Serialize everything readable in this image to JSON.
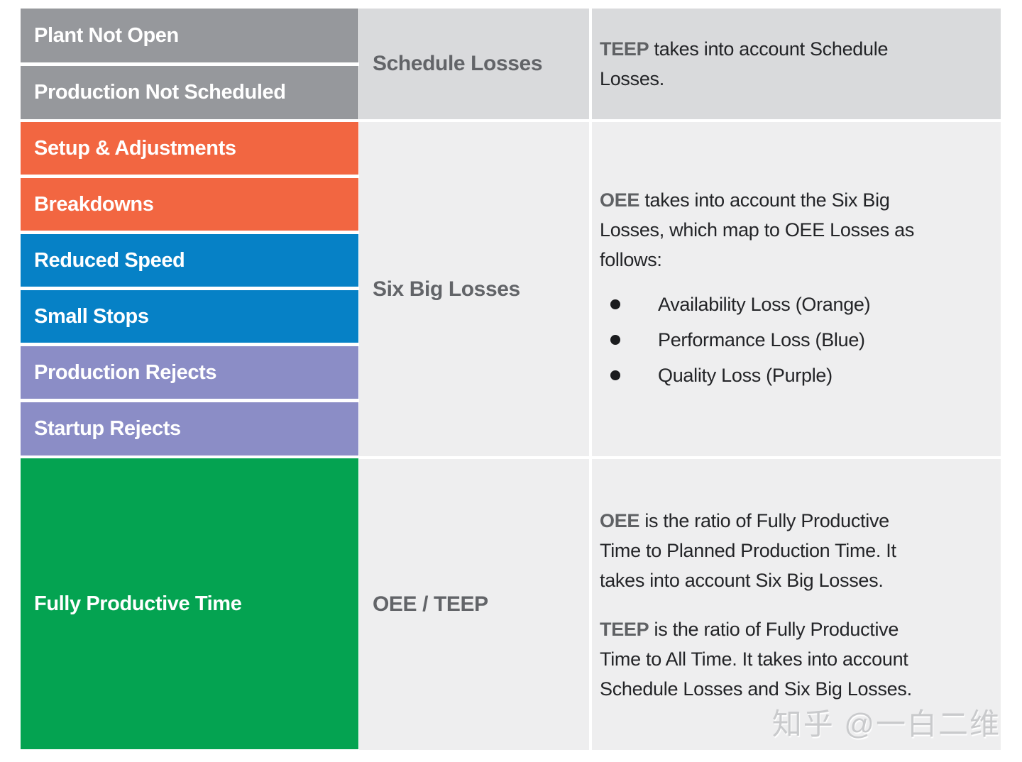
{
  "colors": {
    "schedule_loss_bar": "#96989C",
    "availability_loss_bar": "#F26641",
    "performance_loss_bar": "#0681C6",
    "quality_loss_bar": "#8B8DC6",
    "fully_productive_bar": "#04A351",
    "header_row_bg": "#D9DADC",
    "body_row_bg": "#EEEEEF",
    "category_label_text": "#626468",
    "note_body_text": "#232427",
    "note_keyword_text": "#5F6164",
    "bar_label_text": "#FFFFFF"
  },
  "bars": [
    {
      "label": "Plant Not Open",
      "color": "#96989C"
    },
    {
      "label": "Production Not Scheduled",
      "color": "#96989C"
    },
    {
      "label": "Setup & Adjustments",
      "color": "#F26641"
    },
    {
      "label": "Breakdowns",
      "color": "#F26641"
    },
    {
      "label": "Reduced Speed",
      "color": "#0681C6"
    },
    {
      "label": "Small Stops",
      "color": "#0681C6"
    },
    {
      "label": "Production Rejects",
      "color": "#8B8DC6"
    },
    {
      "label": "Startup Rejects",
      "color": "#8B8DC6"
    },
    {
      "label": "Fully Productive Time",
      "color": "#04A351"
    }
  ],
  "categories": [
    {
      "label": "Schedule Losses"
    },
    {
      "label": "Six Big Losses"
    },
    {
      "label": "OEE / TEEP"
    }
  ],
  "notes": {
    "schedule": {
      "keyword": "TEEP",
      "text": " takes into account Schedule\nLosses."
    },
    "six_big": {
      "keyword": "OEE",
      "text": " takes into account the Six Big\nLosses, which map to OEE Losses as\nfollows:",
      "bullets": [
        "Availability Loss (Orange)",
        "Performance Loss (Blue)",
        "Quality Loss (Purple)"
      ]
    },
    "oee_teep": {
      "p1": {
        "keyword": "OEE",
        "text": " is the ratio of Fully Productive\nTime to Planned Production Time. It\ntakes into account Six Big Losses."
      },
      "p2": {
        "keyword": "TEEP",
        "text": " is the ratio of Fully Productive\nTime to All Time. It takes into account\nSchedule Losses and Six Big Losses."
      }
    }
  },
  "watermark": "知乎 @一白二维"
}
